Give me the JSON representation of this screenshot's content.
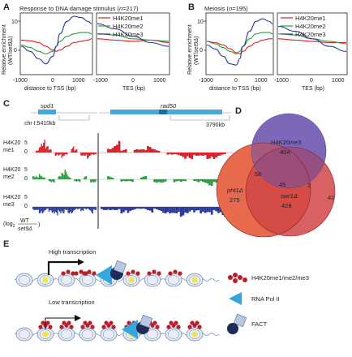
{
  "panel_labels": {
    "a": "A",
    "b": "B",
    "c": "C",
    "d": "D",
    "e": "E"
  },
  "panelA": {
    "title": "Response to DNA damage stimulus (",
    "n_label": "n",
    "n_value": "=217)",
    "ylabel_1": "Relative enrichment",
    "ylabel_2": "(WT/",
    "ylabel_3": "set9Δ",
    "ylabel_4": ")",
    "ytick_top": "10",
    "ytick_mid": "0",
    "xlabel_tss": "distance to TSS (bp)",
    "xlabel_tes": "TES (bp)",
    "xticks_tss": [
      "-1000",
      "0",
      "1000"
    ],
    "xticks_tes": [
      "-1000",
      "0",
      "1000"
    ]
  },
  "panelB": {
    "title": "Meiosis (",
    "n_label": "n",
    "n_value": "=195)",
    "ylabel_1": "Relative enrichment",
    "ylabel_2": "(WT/",
    "ylabel_3": "set9Δ",
    "ylabel_4": ")",
    "ytick_top": "10",
    "ytick_mid": "0",
    "xlabel_tss": "distance to TSS (bp)",
    "xlabel_tes": "TES (bp)",
    "xticks_tss": [
      "-1000",
      "0",
      "1000"
    ],
    "xticks_tes": [
      "-1000",
      "0",
      "1000"
    ]
  },
  "legend": [
    "H4K20me1",
    "H4K20me2",
    "H4K20me3"
  ],
  "colors": {
    "me1": "#d61f26",
    "me2": "#2a9d3a",
    "me3": "#2b3a9a",
    "gene": "#4aa6d6"
  },
  "panelC": {
    "gene1": "spd1",
    "gene2": "rad50",
    "chr_label": "chr I:5410kb",
    "end_label": "3790kb",
    "track_labels": [
      {
        "line1": "H4K20",
        "line2": "me1",
        "top": "5",
        "bottom": "0"
      },
      {
        "line1": "H4K20",
        "line2": "me2",
        "top": "5",
        "bottom": "0"
      },
      {
        "line1": "H4K20",
        "line2": "me3",
        "top": "5",
        "bottom": "0"
      }
    ],
    "log_label": "(log",
    "log_sub": "2",
    "log_num": "WT",
    "log_den": "set9Δ",
    "log_close": ")"
  },
  "panelD": {
    "top_label": "H4K20me3",
    "top_count": "404",
    "left_label": "pht1Δ",
    "left_count": "275",
    "right_label": "swr1Δ",
    "right_count": "428",
    "overlaps": {
      "top_left": "58",
      "center": "45",
      "top_right": "2",
      "left_right": "41"
    }
  },
  "panelE": {
    "high_label": "High transcription",
    "low_label": "Low transcription",
    "legend_marks": "H4K20me1/me2/me3",
    "legend_pol": "RNA Pol II",
    "legend_fact": "FACT"
  },
  "chart_data": [
    {
      "type": "line",
      "title": "Response to DNA damage stimulus (n=217)",
      "xlabel": "distance to TSS (bp) | TES (bp)",
      "ylabel": "Relative enrichment (WT/set9Δ)",
      "ylim": [
        -12,
        12
      ],
      "segments": [
        {
          "name": "TSS",
          "x": [
            -1000,
            -750,
            -500,
            -300,
            -100,
            0,
            100,
            300,
            500,
            700,
            900,
            1000
          ],
          "series": [
            {
              "name": "H4K20me1",
              "values": [
                1.5,
                1.2,
                0.5,
                -1.0,
                -2.5,
                -3.0,
                -2.5,
                -1.0,
                0.5,
                1.0,
                1.5,
                2.0
              ]
            },
            {
              "name": "H4K20me2",
              "values": [
                -0.5,
                -1.5,
                -3.0,
                -4.0,
                -3.0,
                -1.0,
                1.0,
                3.0,
                4.0,
                4.5,
                4.5,
                4.0
              ]
            },
            {
              "name": "H4K20me3",
              "values": [
                -1.0,
                -3.0,
                -6.0,
                -8.0,
                -5.0,
                -1.0,
                4.0,
                9.0,
                11.0,
                10.5,
                9.0,
                8.0
              ]
            }
          ]
        },
        {
          "name": "TES",
          "x": [
            -1000,
            -500,
            0,
            500,
            1000
          ],
          "series": [
            {
              "name": "H4K20me1",
              "values": [
                2.0,
                1.5,
                1.0,
                1.5,
                0.5
              ]
            },
            {
              "name": "H4K20me2",
              "values": [
                4.0,
                3.5,
                2.0,
                1.5,
                1.0
              ]
            },
            {
              "name": "H4K20me3",
              "values": [
                8.0,
                6.0,
                3.0,
                0.5,
                -1.0
              ]
            }
          ]
        }
      ],
      "grid": false
    },
    {
      "type": "line",
      "title": "Meiosis (n=195)",
      "xlabel": "distance to TSS (bp) | TES (bp)",
      "ylabel": "Relative enrichment (WT/set9Δ)",
      "ylim": [
        -12,
        12
      ],
      "segments": [
        {
          "name": "TSS",
          "x": [
            -1000,
            -750,
            -500,
            -300,
            -100,
            0,
            100,
            300,
            500,
            700,
            900,
            1000
          ],
          "series": [
            {
              "name": "H4K20me1",
              "values": [
                1.0,
                0.5,
                -0.5,
                -2.0,
                -3.5,
                -4.0,
                -3.0,
                -1.0,
                0.5,
                1.5,
                2.0,
                2.0
              ]
            },
            {
              "name": "H4K20me2",
              "values": [
                1.0,
                0.0,
                -1.5,
                -3.0,
                -4.0,
                -3.0,
                -1.0,
                2.0,
                4.0,
                4.5,
                4.5,
                4.0
              ]
            },
            {
              "name": "H4K20me3",
              "values": [
                -0.5,
                -2.0,
                -5.0,
                -8.0,
                -8.5,
                -6.0,
                -1.0,
                5.0,
                9.0,
                10.0,
                9.0,
                8.0
              ]
            }
          ]
        },
        {
          "name": "TES",
          "x": [
            -1000,
            -500,
            0,
            500,
            1000
          ],
          "series": [
            {
              "name": "H4K20me1",
              "values": [
                2.0,
                1.5,
                1.0,
                0.5,
                0.5
              ]
            },
            {
              "name": "H4K20me2",
              "values": [
                4.0,
                3.5,
                2.0,
                1.0,
                0.0
              ]
            },
            {
              "name": "H4K20me3",
              "values": [
                7.0,
                5.0,
                2.0,
                -1.0,
                -3.0
              ]
            }
          ]
        }
      ],
      "grid": false
    },
    {
      "type": "bar",
      "title": "",
      "tracks": [
        "H4K20me1",
        "H4K20me2",
        "H4K20me3"
      ],
      "ylim": [
        -5,
        5
      ],
      "genes": [
        "spd1",
        "rad50"
      ],
      "profiles": [
        {
          "name": "H4K20me1",
          "spd1": [
            0,
            1,
            3,
            4,
            2,
            1,
            0,
            -1,
            -1,
            -2,
            -1,
            0,
            2,
            1,
            0,
            -1,
            -1,
            -2,
            -1,
            -1
          ],
          "rad50": [
            0,
            2,
            4,
            1,
            0,
            1,
            1,
            2,
            1,
            0,
            -1,
            -1,
            -2,
            -2,
            -1,
            -1,
            -2,
            -2,
            -1,
            0
          ]
        },
        {
          "name": "H4K20me2",
          "spd1": [
            1,
            1,
            2,
            1,
            0,
            -1,
            -1,
            0,
            1,
            2,
            3,
            1,
            0,
            -1,
            -1,
            0,
            1,
            0,
            -1,
            -1
          ],
          "rad50": [
            0,
            1,
            0,
            -1,
            -1,
            0,
            1,
            0,
            -1,
            -1,
            0,
            -1,
            -1,
            0,
            -1,
            -1,
            -2,
            -1,
            -1,
            0
          ]
        },
        {
          "name": "H4K20me3",
          "spd1": [
            -1,
            -1,
            -2,
            -2,
            -1,
            -2,
            -3,
            -3,
            -2,
            -2,
            -1,
            -2,
            -2,
            -1,
            -1,
            -2,
            -1,
            -1,
            -2,
            -1
          ],
          "rad50": [
            -1,
            -1,
            -1,
            -2,
            -2,
            -1,
            -1,
            -2,
            -1,
            -2,
            -2,
            -2,
            -3,
            -2,
            -2,
            -3,
            -3,
            -2,
            -3,
            -4
          ]
        }
      ]
    }
  ]
}
